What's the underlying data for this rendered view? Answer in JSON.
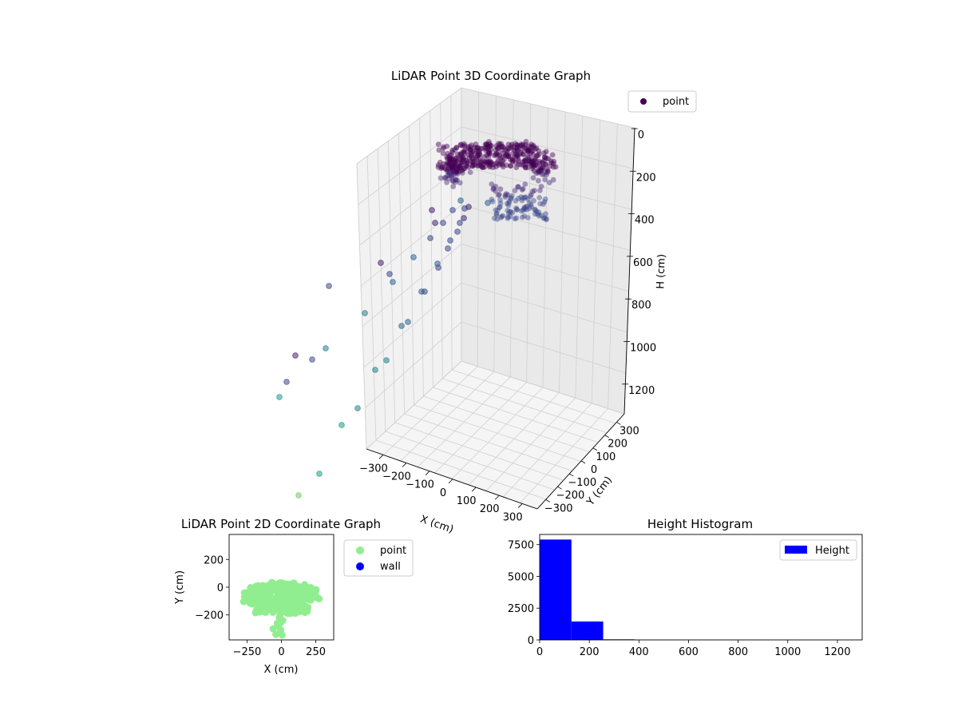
{
  "chart_data": [
    {
      "type": "scatter",
      "projection": "3d",
      "title": "LiDAR Point 3D Coordinate Graph",
      "xlabel": "X (cm)",
      "ylabel": "Y (cm)",
      "zlabel": "H (cm)",
      "xticks": [
        "−300",
        "−200",
        "−100",
        "0",
        "100",
        "200",
        "300"
      ],
      "yticks": [
        "−300",
        "−200",
        "−100",
        "0",
        "100",
        "200",
        "300"
      ],
      "zticks": [
        "0",
        "200",
        "400",
        "600",
        "800",
        "1000",
        "1200"
      ],
      "z_inverted": true,
      "legend": {
        "entries": [
          "point"
        ],
        "placement": "top-right"
      },
      "colormap": "viridis",
      "marker_color": "#440154",
      "grid": true
    },
    {
      "type": "scatter",
      "title": "LiDAR Point 2D Coordinate Graph",
      "xlabel": "X (cm)",
      "ylabel": "Y (cm)",
      "xticks": [
        "−250",
        "0",
        "250"
      ],
      "yticks": [
        "200",
        "0",
        "−200"
      ],
      "xlim": [
        -380,
        380
      ],
      "ylim": [
        -380,
        380
      ],
      "series": [
        {
          "name": "point",
          "color": "#90ee90"
        },
        {
          "name": "wall",
          "color": "#0000ff",
          "points": []
        }
      ],
      "legend": {
        "placement": "outside-right"
      },
      "grid": false
    },
    {
      "type": "bar",
      "subtype": "histogram",
      "title": "Height Histogram",
      "xlabel": "",
      "ylabel": "",
      "xticks": [
        "0",
        "200",
        "400",
        "600",
        "800",
        "1000",
        "1200"
      ],
      "yticks": [
        "0",
        "2500",
        "5000",
        "7500"
      ],
      "xlim": [
        0,
        1300
      ],
      "ylim": [
        0,
        8300
      ],
      "bin_edges": [
        0,
        128,
        256,
        384,
        512,
        640,
        768,
        896,
        1024,
        1152,
        1280
      ],
      "values": [
        7900,
        1450,
        45,
        12,
        6,
        5,
        4,
        3,
        2,
        1
      ],
      "series": [
        {
          "name": "Height",
          "color": "#0000ff"
        }
      ],
      "legend": {
        "placement": "top-right"
      },
      "grid": false
    }
  ]
}
